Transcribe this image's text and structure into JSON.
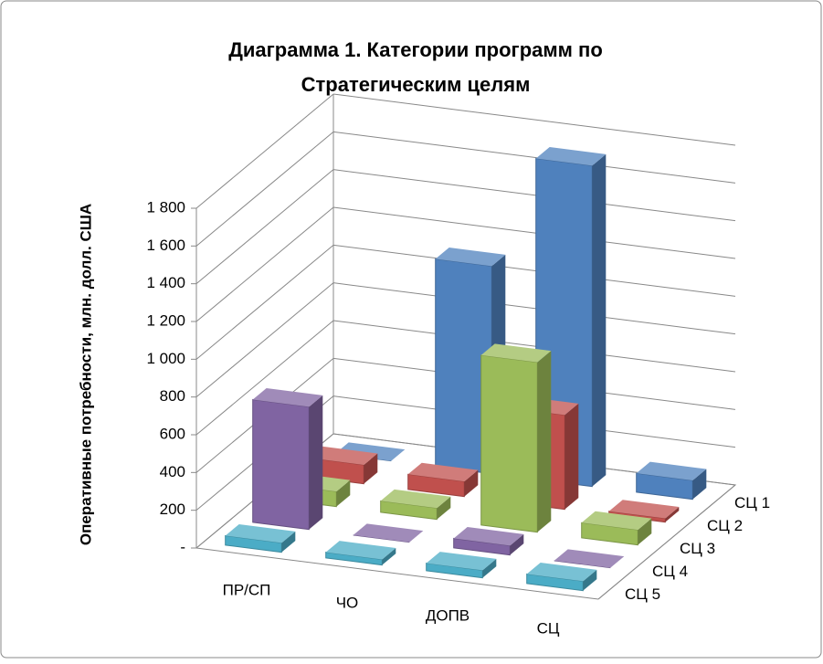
{
  "chart_data": {
    "type": "bar3d",
    "title": "Диаграмма 1. Категории программ по Стратегическим целям",
    "y_label": "Оперативные потребности, млн. долл. США",
    "categories": [
      "ПР/СП",
      "ЧО",
      "ДОПВ",
      "СЦ"
    ],
    "series": [
      {
        "name": "СЦ 1",
        "color": "#4f81bd",
        "values": [
          0,
          1100,
          1700,
          100
        ]
      },
      {
        "name": "СЦ 2",
        "color": "#c0504d",
        "values": [
          100,
          80,
          500,
          20
        ]
      },
      {
        "name": "СЦ 3",
        "color": "#9bbb59",
        "values": [
          80,
          60,
          900,
          80
        ]
      },
      {
        "name": "СЦ 4",
        "color": "#8064a2",
        "values": [
          650,
          0,
          50,
          0
        ]
      },
      {
        "name": "СЦ 5",
        "color": "#4bacc6",
        "values": [
          50,
          30,
          40,
          50
        ]
      }
    ],
    "ylim": [
      0,
      1800
    ],
    "yticks": [
      {
        "value": 0,
        "label": "-"
      },
      200,
      400,
      600,
      800,
      {
        "value": 1000,
        "label": "1 000"
      },
      {
        "value": 1200,
        "label": "1 200"
      },
      {
        "value": 1400,
        "label": "1 400"
      },
      {
        "value": 1600,
        "label": "1 600"
      },
      {
        "value": 1800,
        "label": "1 800"
      }
    ],
    "grid": true
  }
}
